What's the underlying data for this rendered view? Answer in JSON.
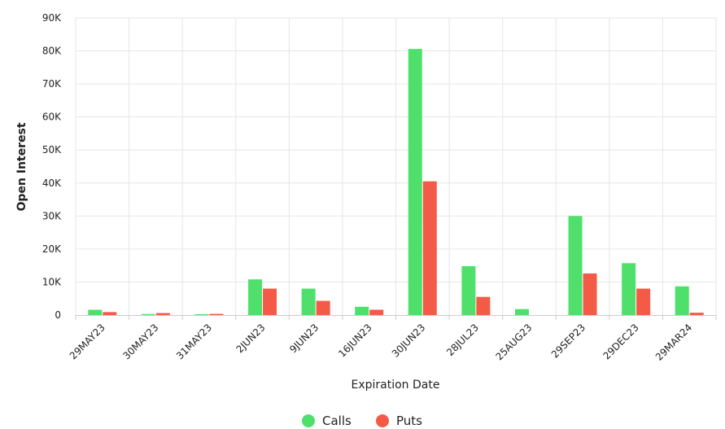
{
  "chart_data": {
    "type": "bar",
    "xlabel": "Expiration Date",
    "ylabel": "Open Interest",
    "ylim": [
      0,
      90000
    ],
    "ytick_values": [
      0,
      10000,
      20000,
      30000,
      40000,
      50000,
      60000,
      70000,
      80000,
      90000
    ],
    "ytick_labels": [
      "0",
      "10K",
      "20K",
      "30K",
      "40K",
      "50K",
      "60K",
      "70K",
      "80K",
      "90K"
    ],
    "categories": [
      "29MAY23",
      "30MAY23",
      "31MAY23",
      "2JUN23",
      "9JUN23",
      "16JUN23",
      "30JUN23",
      "28JUL23",
      "25AUG23",
      "29SEP23",
      "29DEC23",
      "29MAR24"
    ],
    "series": [
      {
        "name": "Calls",
        "color": "#4fe06c",
        "values": [
          1600,
          300,
          250,
          10800,
          8000,
          2500,
          80600,
          14800,
          1800,
          30000,
          15700,
          8700
        ]
      },
      {
        "name": "Puts",
        "color": "#f45b46",
        "values": [
          900,
          600,
          350,
          8000,
          4300,
          1600,
          40500,
          5500,
          0,
          12600,
          8000,
          700
        ]
      }
    ],
    "grid": true,
    "legend": "bottom-center"
  }
}
